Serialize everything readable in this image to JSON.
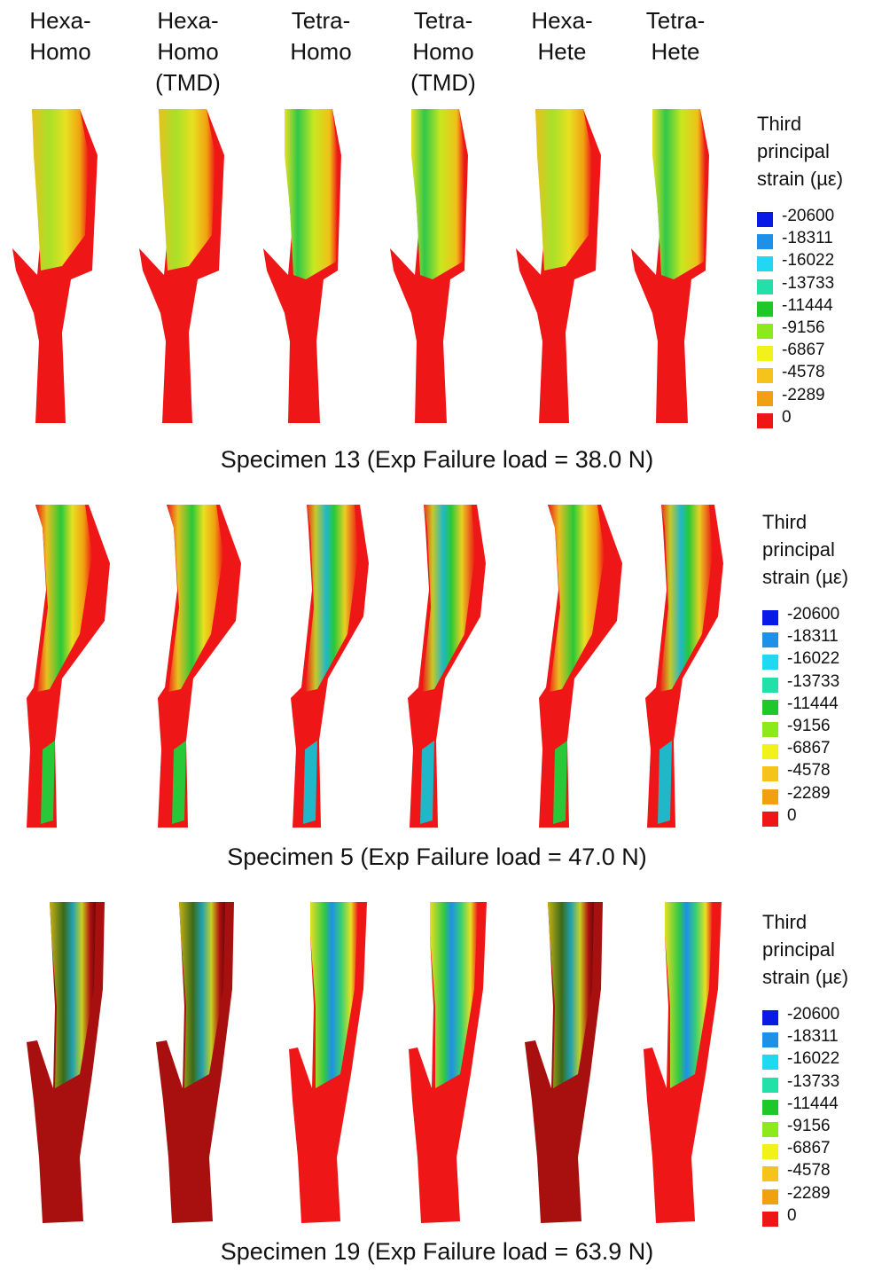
{
  "columns": [
    {
      "line1": "Hexa-",
      "line2": "Homo",
      "line3": ""
    },
    {
      "line1": "Hexa-",
      "line2": "Homo",
      "line3": "(TMD)"
    },
    {
      "line1": "Tetra-",
      "line2": "Homo",
      "line3": ""
    },
    {
      "line1": "Tetra-",
      "line2": "Homo",
      "line3": "(TMD)"
    },
    {
      "line1": "Hexa-",
      "line2": "Hete",
      "line3": ""
    },
    {
      "line1": "Tetra-",
      "line2": "Hete",
      "line3": ""
    }
  ],
  "legend": {
    "title_line1": "Third",
    "title_line2": "principal",
    "title_line3": "strain (µε)",
    "entries": [
      {
        "label": "-20600",
        "color": "#0a1ae6"
      },
      {
        "label": "-18311",
        "color": "#1e90e8"
      },
      {
        "label": "-16022",
        "color": "#20d8f0"
      },
      {
        "label": "-13733",
        "color": "#22e0a8"
      },
      {
        "label": "-11444",
        "color": "#1ec828"
      },
      {
        "label": "-9156",
        "color": "#8ee81e"
      },
      {
        "label": "-6867",
        "color": "#f2f21a"
      },
      {
        "label": "-4578",
        "color": "#f6c21c"
      },
      {
        "label": "-2289",
        "color": "#f0a010"
      },
      {
        "label": "0",
        "color": "#ee1616"
      }
    ]
  },
  "panels": [
    {
      "title_line2": "",
      "title_line1": "Third",
      "caption": "Specimen 13 (Exp Failure load = 38.0 N)"
    },
    {
      "caption": "Specimen 5 (Exp Failure load = 47.0 N)"
    },
    {
      "caption": "Specimen 19 (Exp Failure load = 63.9 N)"
    }
  ]
}
